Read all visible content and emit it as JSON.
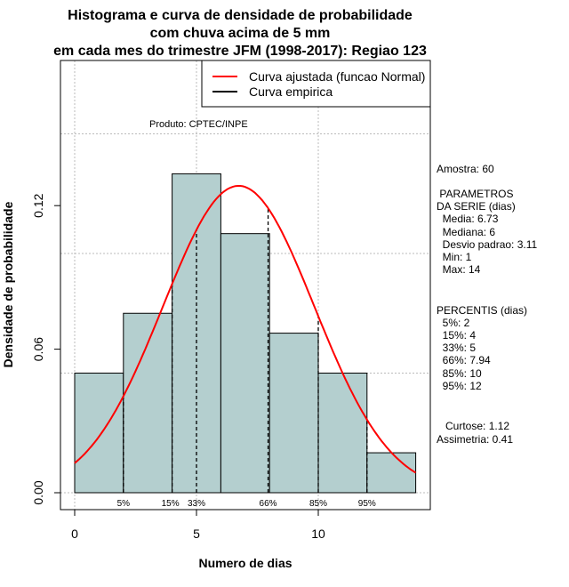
{
  "chart_data": {
    "type": "bar",
    "title": [
      "Histograma e curva de densidade de probabilidade",
      "com chuva acima de 5 mm",
      "em cada mes do trimestre JFM (1998-2017): Regiao 123"
    ],
    "xlabel": "Numero de dias",
    "ylabel": "Densidade de probabilidade",
    "xlim": [
      -0.5,
      14.7
    ],
    "ylim": [
      0,
      0.18
    ],
    "xticks": [
      0,
      5,
      10
    ],
    "xtick_labels": [
      "0",
      "5",
      "10"
    ],
    "yticks": [
      0.0,
      0.06,
      0.12
    ],
    "ytick_labels": [
      "0.00",
      "0.06",
      "0.12"
    ],
    "grid_y": [
      0.05,
      0.1,
      0.15
    ],
    "grid_x": [
      0,
      5,
      10
    ],
    "bins": [
      [
        0,
        2
      ],
      [
        2,
        4
      ],
      [
        4,
        6
      ],
      [
        6,
        8
      ],
      [
        8,
        10
      ],
      [
        10,
        12
      ],
      [
        12,
        14
      ]
    ],
    "values": [
      0.05,
      0.075,
      0.1333,
      0.1083,
      0.0667,
      0.05,
      0.0167
    ],
    "bar_color": "#b4cfcf",
    "normal_fit": {
      "mean": 6.73,
      "sd": 3.11,
      "color": "#ff0000",
      "range": [
        0,
        14
      ]
    },
    "percentiles": [
      {
        "label": "5%",
        "x": 2
      },
      {
        "label": "15%",
        "x": 4
      },
      {
        "label": "33%",
        "x": 5
      },
      {
        "label": "66%",
        "x": 7.94
      },
      {
        "label": "85%",
        "x": 10
      },
      {
        "label": "95%",
        "x": 12
      }
    ],
    "legend": {
      "placement": "top-right",
      "entries": [
        {
          "label": "Curva ajustada (funcao Normal)",
          "color": "#ff0000"
        },
        {
          "label": "Curva empirica",
          "color": "#000000"
        }
      ]
    },
    "annotation": "Produto: CPTEC/INPE"
  },
  "stats": {
    "amostra": "Amostra: 60",
    "params_title1": " PARAMETROS",
    "params_title2": "DA SERIE (dias)",
    "params": [
      "  Media: 6.73",
      "  Mediana: 6",
      "  Desvio padrao: 3.11",
      "  Min: 1",
      "  Max: 14"
    ],
    "perc_title": "PERCENTIS (dias)",
    "percs": [
      "  5%: 2",
      "  15%: 4",
      "  33%: 5",
      "  66%: 7.94",
      "  85%: 10",
      "  95%: 12"
    ],
    "curtose": "   Curtose: 1.12",
    "assimetria": "Assimetria: 0.41"
  }
}
